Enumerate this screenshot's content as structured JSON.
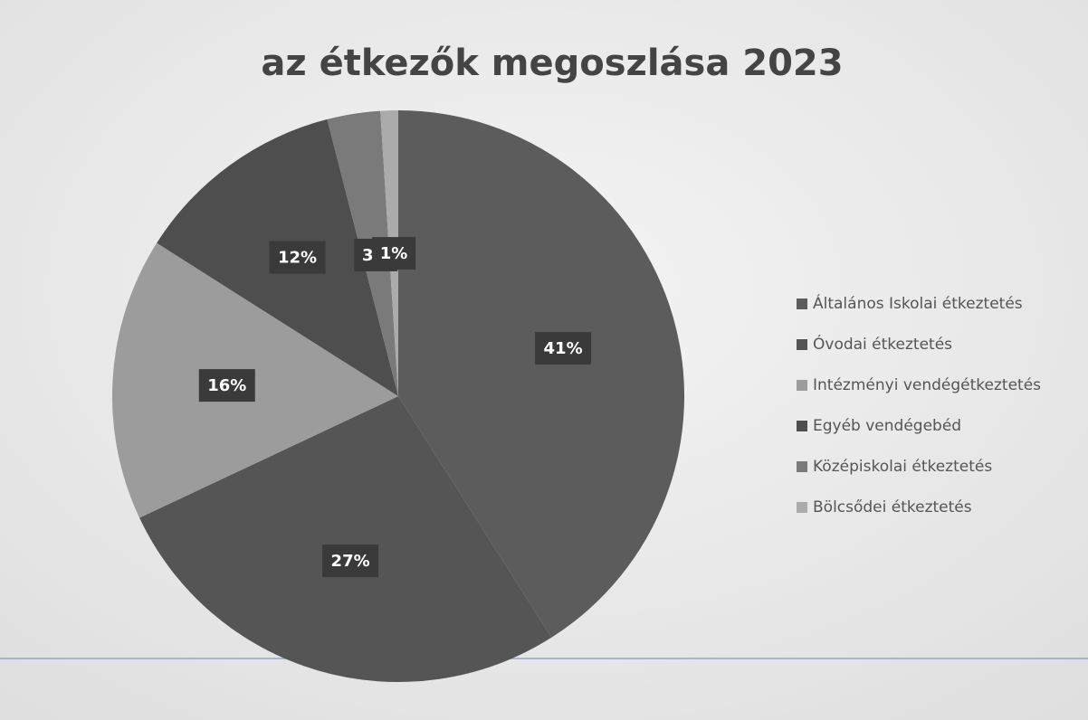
{
  "chart_data": {
    "type": "pie",
    "title": "az étkezők megoszlása 2023",
    "categories": [
      "Általános Iskolai étkeztetés",
      "Óvodai étkeztetés",
      "Intézményi vendégétkeztetés",
      "Egyéb vendégebéd",
      "Középiskolai étkeztetés",
      "Bölcsődei étkeztetés"
    ],
    "values": [
      41,
      27,
      16,
      12,
      3,
      1
    ],
    "value_labels": [
      "41%",
      "27%",
      "16%",
      "12%",
      "3%",
      "1%"
    ],
    "colors": [
      "#5c5c5c",
      "#555555",
      "#9c9c9c",
      "#4e4e4e",
      "#7a7a7a",
      "#ababab"
    ],
    "legend": "right"
  }
}
